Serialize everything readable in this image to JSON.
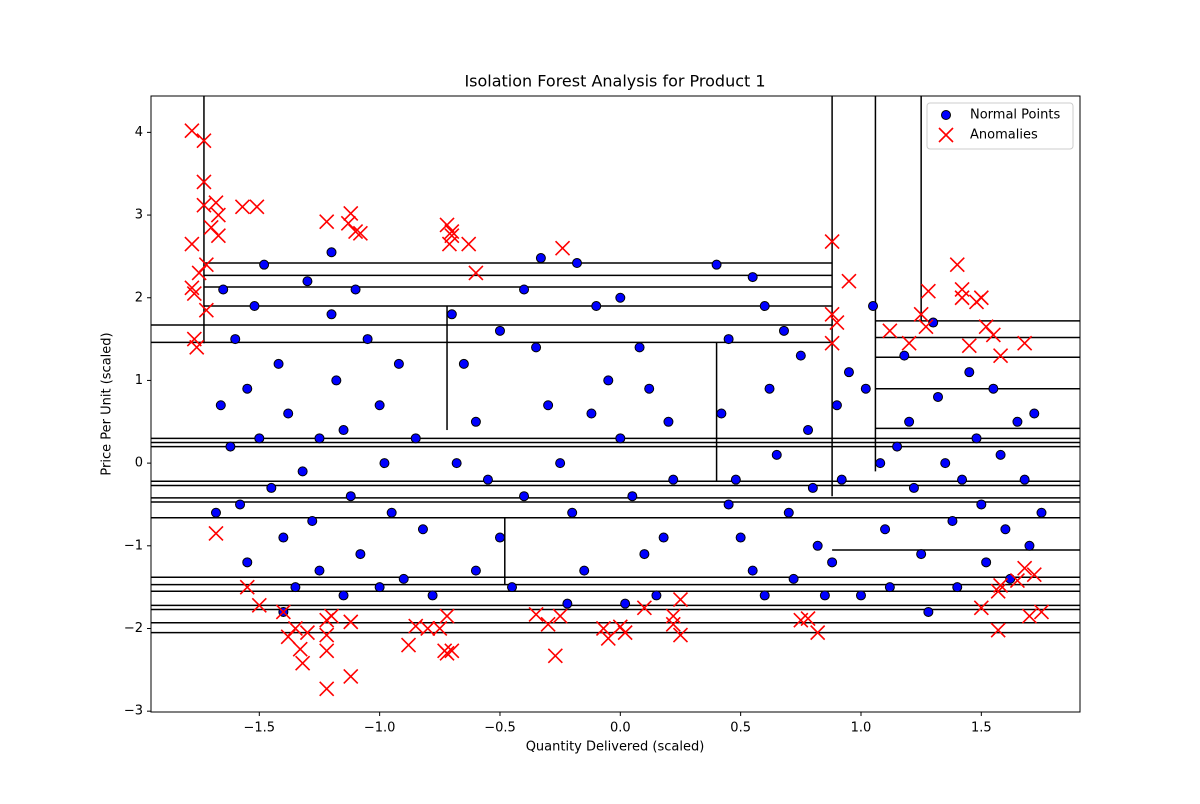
{
  "chart_data": {
    "type": "scatter",
    "title": "Isolation Forest Analysis for Product 1",
    "x_label": "Quantity Delivered (scaled)",
    "y_label": "Price Per Unit (scaled)",
    "xlim": [
      -1.95,
      1.91
    ],
    "ylim": [
      -3.01,
      4.44
    ],
    "xticks": [
      {
        "value": -1.5,
        "label": "−1.5"
      },
      {
        "value": -1.0,
        "label": "−1.0"
      },
      {
        "value": -0.5,
        "label": "−0.5"
      },
      {
        "value": 0.0,
        "label": "0.0"
      },
      {
        "value": 0.5,
        "label": "0.5"
      },
      {
        "value": 1.0,
        "label": "1.0"
      },
      {
        "value": 1.5,
        "label": "1.5"
      }
    ],
    "yticks": [
      {
        "value": -3,
        "label": "−3"
      },
      {
        "value": -2,
        "label": "−2"
      },
      {
        "value": -1,
        "label": "−1"
      },
      0,
      1,
      2,
      3,
      4
    ],
    "legend": "upper right",
    "split_color": "#000000",
    "splits": [
      [
        -1.73,
        1.45,
        -1.73,
        4.44
      ],
      [
        0.88,
        -0.4,
        0.88,
        4.44
      ],
      [
        1.06,
        -0.1,
        1.06,
        4.44
      ],
      [
        1.25,
        1.7,
        1.25,
        4.44
      ],
      [
        -1.73,
        2.42,
        0.88,
        2.42
      ],
      [
        -1.73,
        2.27,
        0.88,
        2.27
      ],
      [
        -1.73,
        2.13,
        0.88,
        2.13
      ],
      [
        -1.73,
        1.9,
        0.88,
        1.9
      ],
      [
        -1.95,
        1.67,
        0.88,
        1.67
      ],
      [
        -1.95,
        1.46,
        0.88,
        1.46
      ],
      [
        1.06,
        1.72,
        1.91,
        1.72
      ],
      [
        1.06,
        1.52,
        1.91,
        1.52
      ],
      [
        1.06,
        1.28,
        1.91,
        1.28
      ],
      [
        1.06,
        0.9,
        1.91,
        0.9
      ],
      [
        1.06,
        0.42,
        1.91,
        0.42
      ],
      [
        -1.95,
        0.3,
        1.91,
        0.3
      ],
      [
        -1.95,
        0.25,
        1.91,
        0.25
      ],
      [
        -1.95,
        0.2,
        1.91,
        0.2
      ],
      [
        -1.95,
        -0.22,
        1.91,
        -0.22
      ],
      [
        -1.95,
        -0.27,
        1.91,
        -0.27
      ],
      [
        -1.95,
        -0.42,
        1.91,
        -0.42
      ],
      [
        -1.95,
        -0.47,
        1.91,
        -0.47
      ],
      [
        -1.95,
        -0.66,
        1.91,
        -0.66
      ],
      [
        0.88,
        -1.05,
        1.91,
        -1.05
      ],
      [
        -1.95,
        -1.38,
        1.91,
        -1.38
      ],
      [
        -1.95,
        -1.47,
        1.91,
        -1.47
      ],
      [
        -1.95,
        -1.55,
        1.91,
        -1.55
      ],
      [
        -1.95,
        -1.72,
        1.91,
        -1.72
      ],
      [
        -1.95,
        -1.77,
        1.91,
        -1.77
      ],
      [
        -1.95,
        -1.93,
        1.91,
        -1.93
      ],
      [
        -1.95,
        -2.05,
        1.91,
        -2.05
      ],
      [
        -0.72,
        0.4,
        -0.72,
        1.9
      ],
      [
        -0.48,
        -1.47,
        -0.48,
        -0.66
      ],
      [
        0.4,
        -0.22,
        0.4,
        1.46
      ]
    ],
    "series": [
      {
        "name": "Normal Points",
        "color": "#0000ff",
        "marker": "o",
        "x": [
          -1.65,
          -1.6,
          -1.55,
          -1.5,
          -1.45,
          -1.4,
          -1.35,
          -1.62,
          -1.58,
          -1.52,
          -1.48,
          -1.42,
          -1.38,
          -1.32,
          -1.28,
          -1.25,
          -1.2,
          -1.18,
          -1.15,
          -1.12,
          -1.08,
          -1.05,
          -1.0,
          -0.98,
          -0.95,
          -1.3,
          -1.1,
          -1.68,
          -1.66,
          -1.25,
          -1.0,
          -0.9,
          -0.92,
          -0.85,
          -0.82,
          -0.78,
          -1.4,
          -1.15,
          -1.55,
          -1.2,
          -0.7,
          -0.65,
          -0.6,
          -0.55,
          -0.5,
          -0.45,
          -0.4,
          -0.35,
          -0.3,
          -0.25,
          -0.2,
          -0.15,
          -0.1,
          -0.05,
          0.0,
          0.05,
          0.1,
          0.15,
          0.2,
          0.22,
          -0.33,
          -0.18,
          0.0,
          -0.6,
          -0.68,
          -0.4,
          -0.12,
          0.08,
          0.18,
          -0.5,
          0.12,
          -0.22,
          0.02,
          0.4,
          0.45,
          0.42,
          0.48,
          0.5,
          0.55,
          0.6,
          0.62,
          0.65,
          0.7,
          0.72,
          0.75,
          0.78,
          0.8,
          0.82,
          0.85,
          0.9,
          0.92,
          0.95,
          0.55,
          0.68,
          0.88,
          0.45,
          0.6,
          1.05,
          1.02,
          1.08,
          1.1,
          1.12,
          1.18,
          1.2,
          1.22,
          1.25,
          1.3,
          1.32,
          1.35,
          1.38,
          1.4,
          1.45,
          1.48,
          1.5,
          1.52,
          1.55,
          1.58,
          1.6,
          1.62,
          1.65,
          1.68,
          1.7,
          1.72,
          1.75,
          1.0,
          1.15,
          1.42,
          1.28
        ],
        "y": [
          2.1,
          1.5,
          0.9,
          0.3,
          -0.3,
          -0.9,
          -1.5,
          0.2,
          -0.5,
          1.9,
          2.4,
          1.2,
          0.6,
          -0.1,
          -0.7,
          -1.3,
          1.8,
          1.0,
          0.4,
          -0.4,
          -1.1,
          1.5,
          0.7,
          0.0,
          -0.6,
          2.2,
          2.1,
          -0.6,
          0.7,
          0.3,
          -1.5,
          -1.4,
          1.2,
          0.3,
          -0.8,
          -1.6,
          -1.8,
          -1.6,
          -1.2,
          2.55,
          1.8,
          1.2,
          0.5,
          -0.2,
          -0.9,
          -1.5,
          2.1,
          1.4,
          0.7,
          0.0,
          -0.6,
          -1.3,
          1.9,
          1.0,
          0.3,
          -0.4,
          -1.1,
          -1.6,
          0.5,
          -0.2,
          2.48,
          2.42,
          2.0,
          -1.3,
          0.0,
          -0.4,
          0.6,
          1.4,
          -0.9,
          1.6,
          0.9,
          -1.7,
          -1.7,
          2.4,
          1.5,
          0.6,
          -0.2,
          -0.9,
          -1.3,
          1.9,
          0.9,
          0.1,
          -0.6,
          -1.4,
          1.3,
          0.4,
          -0.3,
          -1.0,
          -1.6,
          0.7,
          -0.2,
          1.1,
          2.25,
          1.6,
          -1.2,
          -0.5,
          -1.6,
          1.9,
          0.9,
          0.0,
          -0.8,
          -1.5,
          1.3,
          0.5,
          -0.3,
          -1.1,
          1.7,
          0.8,
          0.0,
          -0.7,
          -1.5,
          1.1,
          0.3,
          -0.5,
          -1.2,
          0.9,
          0.1,
          -0.8,
          -1.4,
          0.5,
          -0.2,
          -1.0,
          0.6,
          -0.6,
          -1.6,
          0.2,
          -0.2,
          -1.8
        ]
      },
      {
        "name": "Anomalies",
        "color": "#ff0000",
        "marker": "x",
        "x": [
          -1.78,
          -1.73,
          -1.73,
          -1.73,
          -1.68,
          -1.67,
          -1.7,
          -1.67,
          -1.78,
          -1.72,
          -1.75,
          -1.78,
          -1.77,
          -1.72,
          -1.77,
          -1.76,
          -1.68,
          -1.57,
          -1.51,
          -1.55,
          -1.5,
          -1.22,
          -1.12,
          -1.13,
          -1.1,
          -1.08,
          -0.72,
          -0.7,
          -0.7,
          -0.71,
          -0.63,
          -0.6,
          -0.24,
          0.88,
          0.95,
          0.88,
          0.9,
          0.88,
          1.12,
          1.2,
          1.25,
          1.28,
          1.27,
          1.4,
          1.42,
          1.42,
          1.5,
          1.48,
          1.52,
          1.55,
          1.45,
          1.58,
          1.68,
          -1.4,
          -1.38,
          -1.35,
          -1.33,
          -1.32,
          -1.3,
          -1.22,
          -1.2,
          -1.22,
          -1.22,
          -1.22,
          -1.12,
          -1.12,
          -0.88,
          -0.85,
          -0.8,
          -0.75,
          -0.73,
          -0.72,
          -0.7,
          -0.72,
          -0.35,
          -0.3,
          -0.25,
          -0.27,
          -0.07,
          -0.05,
          0.02,
          0.0,
          0.1,
          0.22,
          0.22,
          0.25,
          0.25,
          0.75,
          0.78,
          0.82,
          1.5,
          1.57,
          1.58,
          1.57,
          1.65,
          1.68,
          1.72,
          1.7,
          1.75
        ],
        "y": [
          4.02,
          3.9,
          3.4,
          3.12,
          3.15,
          3.0,
          2.85,
          2.75,
          2.65,
          2.4,
          2.3,
          2.12,
          2.05,
          1.85,
          1.5,
          1.4,
          -0.85,
          3.1,
          3.1,
          -1.5,
          -1.72,
          2.92,
          3.02,
          2.9,
          2.8,
          2.78,
          2.88,
          2.8,
          2.75,
          2.65,
          2.65,
          2.3,
          2.6,
          2.68,
          2.2,
          1.8,
          1.7,
          1.45,
          1.6,
          1.45,
          1.8,
          2.08,
          1.65,
          2.4,
          2.1,
          2.0,
          2.0,
          1.95,
          1.65,
          1.55,
          1.42,
          1.3,
          1.45,
          -1.8,
          -2.1,
          -2.0,
          -2.25,
          -2.42,
          -2.05,
          -1.9,
          -1.85,
          -2.08,
          -2.27,
          -2.73,
          -1.92,
          -2.58,
          -2.2,
          -1.97,
          -2.0,
          -2.0,
          -2.27,
          -2.3,
          -2.27,
          -1.85,
          -1.83,
          -1.95,
          -1.85,
          -2.33,
          -2.0,
          -2.12,
          -2.05,
          -1.98,
          -1.75,
          -1.85,
          -1.95,
          -2.08,
          -1.65,
          -1.9,
          -1.88,
          -2.05,
          -1.75,
          -1.55,
          -1.48,
          -2.02,
          -1.42,
          -1.27,
          -1.35,
          -1.85,
          -1.8
        ]
      }
    ]
  }
}
